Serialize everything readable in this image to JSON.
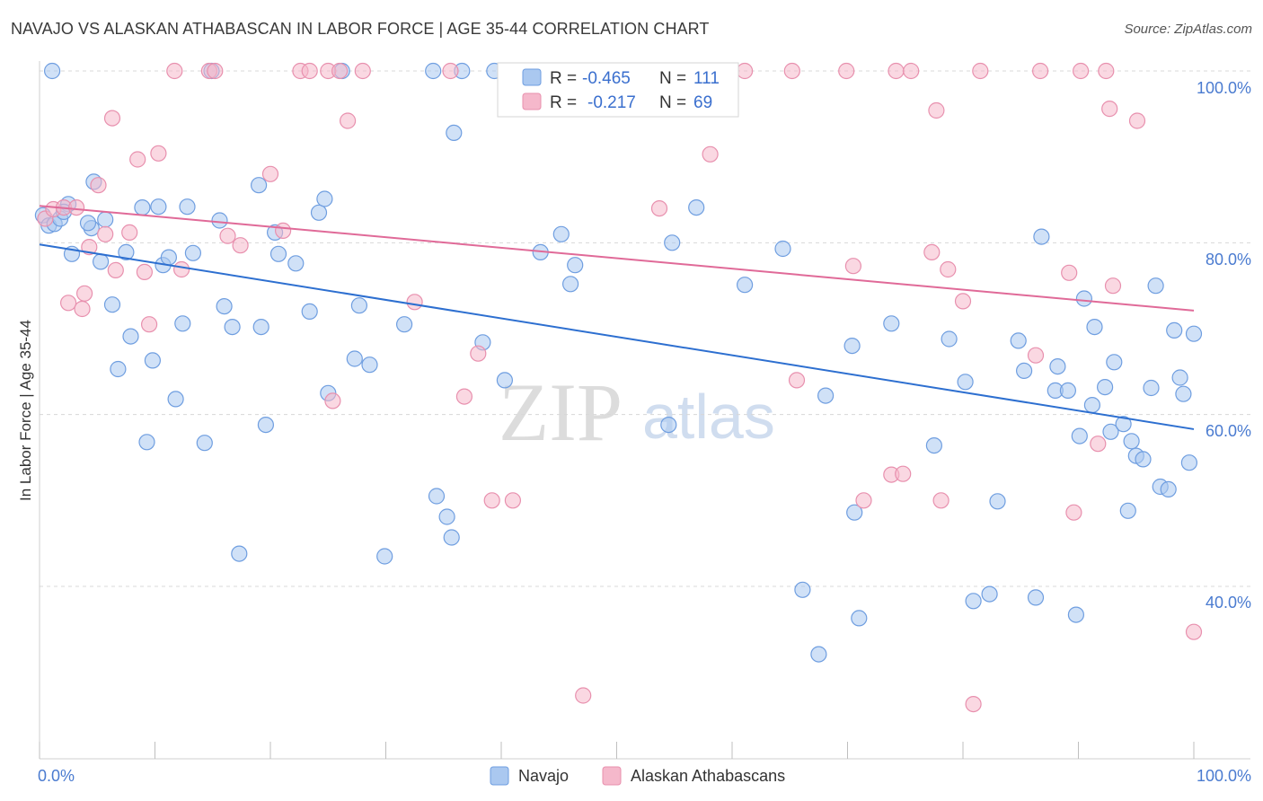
{
  "title": "NAVAJO VS ALASKAN ATHABASCAN IN LABOR FORCE | AGE 35-44 CORRELATION CHART",
  "source": "Source: ZipAtlas.com",
  "colors": {
    "navajo_fill": "#aac8f0",
    "navajo_stroke": "#6f9ee0",
    "navajo_line": "#2d6fd0",
    "alaskan_fill": "#f5b8cb",
    "alaskan_stroke": "#e890ae",
    "alaskan_line": "#e06a98",
    "tick_text": "#4a7bd0",
    "grid": "#d8d8d8"
  },
  "legend": {
    "r_label": "R =",
    "n_label": "N =",
    "navajo_r": "-0.465",
    "navajo_n": "111",
    "alaskan_r": "-0.217",
    "alaskan_n": "69"
  },
  "watermark": {
    "zip": "ZIP",
    "atlas": "atlas"
  },
  "chart_data": {
    "type": "scatter",
    "title": "NAVAJO VS ALASKAN ATHABASCAN IN LABOR FORCE | AGE 35-44 CORRELATION CHART",
    "xlabel": "",
    "ylabel": "In Labor Force | Age 35-44",
    "xlim": [
      0,
      100
    ],
    "ylim": [
      20,
      100
    ],
    "x_tick_labels": [
      "0.0%",
      "100.0%"
    ],
    "y_tick_labels": [
      "100.0%",
      "80.0%",
      "60.0%",
      "40.0%"
    ],
    "y_ticks": [
      100,
      80,
      60,
      40
    ],
    "grid": true,
    "series": [
      {
        "name": "Navajo",
        "trend": {
          "x": [
            0,
            100
          ],
          "y": [
            79.8,
            58.3
          ]
        },
        "points": [
          [
            0.3,
            83.2
          ],
          [
            0.8,
            82.0
          ],
          [
            1.3,
            82.2
          ],
          [
            1.8,
            82.8
          ],
          [
            2.5,
            84.5
          ],
          [
            2.8,
            78.7
          ],
          [
            4.5,
            81.7
          ],
          [
            4.7,
            87.1
          ],
          [
            5.3,
            77.8
          ],
          [
            5.7,
            82.7
          ],
          [
            6.3,
            72.8
          ],
          [
            6.8,
            65.3
          ],
          [
            7.5,
            78.9
          ],
          [
            7.9,
            69.1
          ],
          [
            8.9,
            84.1
          ],
          [
            9.3,
            56.8
          ],
          [
            9.8,
            66.3
          ],
          [
            10.3,
            84.2
          ],
          [
            10.7,
            77.4
          ],
          [
            11.2,
            78.3
          ],
          [
            11.8,
            61.8
          ],
          [
            12.4,
            70.6
          ],
          [
            12.8,
            84.2
          ],
          [
            13.3,
            78.8
          ],
          [
            14.3,
            56.7
          ],
          [
            14.9,
            100
          ],
          [
            15.6,
            82.6
          ],
          [
            16.0,
            72.6
          ],
          [
            16.7,
            70.2
          ],
          [
            17.3,
            43.8
          ],
          [
            19.0,
            86.7
          ],
          [
            19.2,
            70.2
          ],
          [
            19.6,
            58.8
          ],
          [
            20.4,
            81.2
          ],
          [
            20.7,
            78.7
          ],
          [
            22.2,
            77.6
          ],
          [
            23.4,
            72.0
          ],
          [
            24.2,
            83.5
          ],
          [
            24.7,
            85.1
          ],
          [
            25.0,
            62.5
          ],
          [
            26.2,
            100
          ],
          [
            27.3,
            66.5
          ],
          [
            27.7,
            72.7
          ],
          [
            28.6,
            65.8
          ],
          [
            29.9,
            43.5
          ],
          [
            31.6,
            70.5
          ],
          [
            34.1,
            100
          ],
          [
            34.4,
            50.5
          ],
          [
            35.3,
            48.1
          ],
          [
            35.7,
            45.7
          ],
          [
            35.9,
            92.8
          ],
          [
            36.6,
            100
          ],
          [
            38.4,
            68.4
          ],
          [
            39.4,
            100
          ],
          [
            40.3,
            64.0
          ],
          [
            41.8,
            100
          ],
          [
            43.4,
            78.9
          ],
          [
            45.2,
            81.0
          ],
          [
            46.0,
            75.2
          ],
          [
            46.4,
            77.4
          ],
          [
            54.5,
            58.8
          ],
          [
            54.8,
            80.0
          ],
          [
            56.9,
            84.1
          ],
          [
            59.3,
            100
          ],
          [
            61.1,
            75.1
          ],
          [
            64.4,
            79.3
          ],
          [
            66.1,
            39.6
          ],
          [
            67.5,
            32.1
          ],
          [
            68.1,
            62.2
          ],
          [
            70.4,
            68.0
          ],
          [
            70.6,
            48.6
          ],
          [
            71.0,
            36.3
          ],
          [
            73.8,
            70.6
          ],
          [
            77.5,
            56.4
          ],
          [
            78.8,
            68.8
          ],
          [
            80.2,
            63.8
          ],
          [
            80.9,
            38.3
          ],
          [
            82.3,
            39.1
          ],
          [
            83.0,
            49.9
          ],
          [
            84.8,
            68.6
          ],
          [
            85.3,
            65.1
          ],
          [
            86.3,
            38.7
          ],
          [
            86.8,
            80.7
          ],
          [
            88.0,
            62.8
          ],
          [
            88.2,
            65.6
          ],
          [
            89.1,
            62.8
          ],
          [
            89.8,
            36.7
          ],
          [
            90.1,
            57.5
          ],
          [
            90.5,
            73.5
          ],
          [
            91.2,
            61.1
          ],
          [
            91.4,
            70.2
          ],
          [
            92.3,
            63.2
          ],
          [
            92.8,
            58.0
          ],
          [
            93.1,
            66.1
          ],
          [
            93.9,
            58.9
          ],
          [
            94.3,
            48.8
          ],
          [
            94.6,
            56.9
          ],
          [
            95.0,
            55.2
          ],
          [
            95.6,
            54.8
          ],
          [
            96.3,
            63.1
          ],
          [
            96.7,
            75.0
          ],
          [
            97.1,
            51.6
          ],
          [
            97.8,
            51.3
          ],
          [
            98.3,
            69.8
          ],
          [
            98.8,
            64.3
          ],
          [
            99.1,
            62.4
          ],
          [
            99.6,
            54.4
          ],
          [
            100.0,
            69.4
          ],
          [
            1.1,
            100
          ],
          [
            2.1,
            83.6
          ],
          [
            4.2,
            82.3
          ]
        ]
      },
      {
        "name": "Alaskan Athabascans",
        "trend": {
          "x": [
            0,
            100
          ],
          "y": [
            84.3,
            72.1
          ]
        },
        "points": [
          [
            0.5,
            82.8
          ],
          [
            1.2,
            83.9
          ],
          [
            2.1,
            84.1
          ],
          [
            2.5,
            73.0
          ],
          [
            3.2,
            84.1
          ],
          [
            3.7,
            72.3
          ],
          [
            3.9,
            74.1
          ],
          [
            4.3,
            79.5
          ],
          [
            5.1,
            86.7
          ],
          [
            5.7,
            81.0
          ],
          [
            6.3,
            94.5
          ],
          [
            6.6,
            76.8
          ],
          [
            7.8,
            81.2
          ],
          [
            8.5,
            89.7
          ],
          [
            9.1,
            76.6
          ],
          [
            9.5,
            70.5
          ],
          [
            10.3,
            90.4
          ],
          [
            11.7,
            100
          ],
          [
            12.3,
            76.9
          ],
          [
            14.7,
            100
          ],
          [
            15.2,
            100
          ],
          [
            16.3,
            80.8
          ],
          [
            17.4,
            79.7
          ],
          [
            20.0,
            88.0
          ],
          [
            21.1,
            81.4
          ],
          [
            22.6,
            100
          ],
          [
            23.4,
            100
          ],
          [
            25.0,
            100
          ],
          [
            25.4,
            61.6
          ],
          [
            26.0,
            100
          ],
          [
            26.7,
            94.2
          ],
          [
            28.0,
            100
          ],
          [
            32.5,
            73.1
          ],
          [
            35.6,
            100
          ],
          [
            36.8,
            62.1
          ],
          [
            38.0,
            67.1
          ],
          [
            39.2,
            50.0
          ],
          [
            41.0,
            50.0
          ],
          [
            47.1,
            27.3
          ],
          [
            53.7,
            84.0
          ],
          [
            58.1,
            90.3
          ],
          [
            61.1,
            100
          ],
          [
            65.2,
            100
          ],
          [
            65.6,
            64.0
          ],
          [
            69.9,
            100
          ],
          [
            70.5,
            77.3
          ],
          [
            71.4,
            50.0
          ],
          [
            73.8,
            53.0
          ],
          [
            74.2,
            100
          ],
          [
            74.8,
            53.1
          ],
          [
            75.5,
            100
          ],
          [
            77.3,
            78.9
          ],
          [
            77.7,
            95.4
          ],
          [
            78.1,
            50.0
          ],
          [
            78.7,
            76.9
          ],
          [
            80.0,
            73.2
          ],
          [
            80.9,
            26.3
          ],
          [
            81.5,
            100
          ],
          [
            86.3,
            66.9
          ],
          [
            86.7,
            100
          ],
          [
            89.2,
            76.5
          ],
          [
            89.6,
            48.6
          ],
          [
            90.2,
            100
          ],
          [
            91.7,
            56.6
          ],
          [
            92.4,
            100
          ],
          [
            92.7,
            95.6
          ],
          [
            93.0,
            75.0
          ],
          [
            95.1,
            94.2
          ],
          [
            100.0,
            34.7
          ]
        ]
      }
    ]
  },
  "bottom_legend": [
    "Navajo",
    "Alaskan Athabascans"
  ]
}
